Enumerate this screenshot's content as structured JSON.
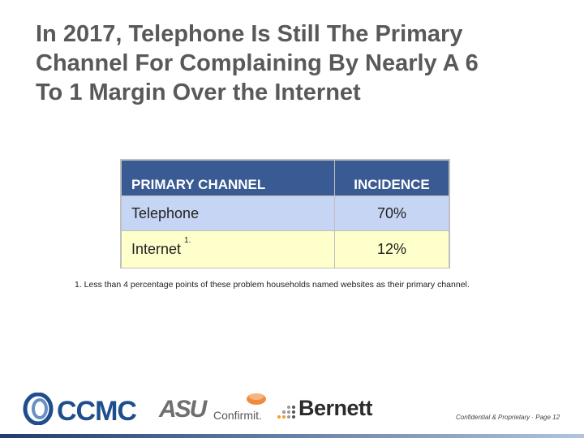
{
  "slide": {
    "title_lines": [
      "In 2017, Telephone Is Still The Primary",
      "Channel For Complaining By Nearly A 6",
      "To 1 Margin Over the Internet"
    ]
  },
  "table": {
    "headers": [
      "PRIMARY CHANNEL",
      "INCIDENCE"
    ],
    "rows": [
      {
        "channel": "Telephone",
        "note": "",
        "incidence": "70%"
      },
      {
        "channel": "Internet",
        "note": "1.",
        "incidence": "12%"
      }
    ],
    "colors": {
      "header": "#3a5a94",
      "row1": "#c6d5f4",
      "row2": "#ffffcc"
    }
  },
  "footnote": "1.  Less than 4 percentage points of these problem households named websites as their primary channel.",
  "logos": {
    "ccmc": "CCMC",
    "asu": "ASU",
    "confirmit": "Confirmit.",
    "bernett": "Bernett"
  },
  "footer": {
    "text": "Confidential & Proprietary · Page 12"
  }
}
